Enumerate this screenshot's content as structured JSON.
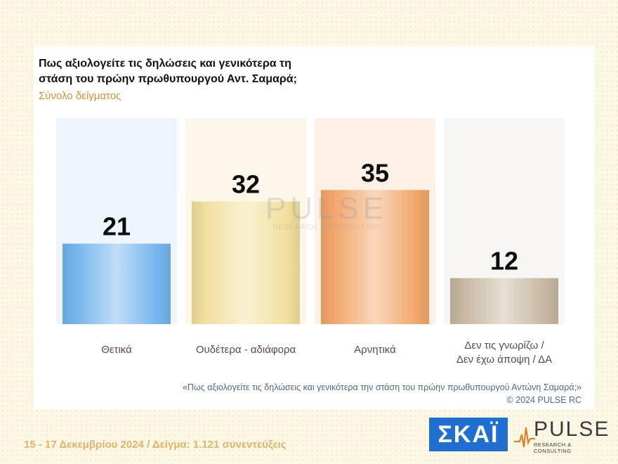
{
  "title_line1": "Πως αξιολογείτε τις δηλώσεις και γενικότερα τη",
  "title_line2": "στάση του πρώην πρωθυπουργού Αντ. Σαμαρά;",
  "subtitle": "Σύνολο δείγματος",
  "watermark": {
    "main": "PULSE",
    "sub": "RESEARCH & CONSULTING"
  },
  "footnote_line1": "«Πως αξιολογείτε τις δηλώσεις και γενικότερα την στάση του πρώην πρωθυπουργού Αντώνη Σαμαρά;»",
  "footnote_line2": "©  2024  PULSE RC",
  "dates": "15 - 17 Δεκεμβρίου 2024  /  Δείγμα:  1.121 συνεντεύξεις",
  "logos": {
    "skai": "ΣΚΑΪ",
    "pulse_main": "PULSE",
    "pulse_sub": "RESEARCH & CONSULTING"
  },
  "colors": {
    "bar_pos": "#74b4ee",
    "bar_neu": "#f1df9e",
    "bar_neg": "#f2a66a",
    "bar_dk": "#c7b7a0",
    "panel_pos": "#eef5fc",
    "panel_neu": "#fcf7e8",
    "panel_neg": "#fdf1e6",
    "panel_dk": "#f8f6f4",
    "label": "#5b4a44",
    "title": "#111111",
    "subtitle": "#d1922e"
  },
  "chart_data": {
    "type": "bar",
    "title": "Πως αξιολογείτε τις δηλώσεις και γενικότερα τη στάση του πρώην πρωθυπουργού Αντ. Σαμαρά;",
    "subtitle": "Σύνολο δείγματος",
    "categories": [
      [
        "Θετικά"
      ],
      [
        "Ουδέτερα - αδιάφορα"
      ],
      [
        "Αρνητικά"
      ],
      [
        "Δεν τις γνωρίζω /",
        "Δεν έχω άποψη / ΔΑ"
      ]
    ],
    "values": [
      21,
      32,
      35,
      12
    ],
    "ylim": [
      0,
      50
    ],
    "grid": false,
    "legend": "none"
  }
}
